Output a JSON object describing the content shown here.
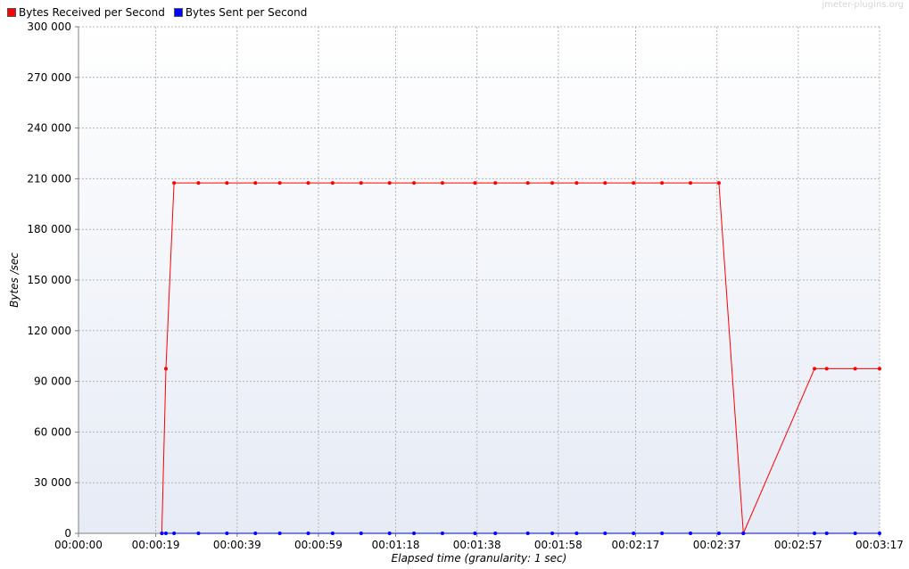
{
  "watermark": "jmeter-plugins.org",
  "chart_data": {
    "type": "line",
    "title": "",
    "xlabel": "Elapsed time (granularity: 1 sec)",
    "ylabel": "Bytes /sec",
    "x_unit": "seconds",
    "xlim": [
      0,
      197
    ],
    "ylim": [
      0,
      300000
    ],
    "x_ticks": [
      0,
      19,
      39,
      59,
      78,
      98,
      118,
      137,
      157,
      177,
      197
    ],
    "x_tick_labels": [
      "00:00:00",
      "00:00:19",
      "00:00:39",
      "00:00:59",
      "00:01:18",
      "00:01:38",
      "00:01:58",
      "00:02:17",
      "00:02:37",
      "00:02:57",
      "00:03:17"
    ],
    "y_ticks": [
      0,
      30000,
      60000,
      90000,
      120000,
      150000,
      180000,
      210000,
      240000,
      270000,
      300000
    ],
    "y_tick_labels": [
      "0",
      "30 000",
      "60 000",
      "90 000",
      "120 000",
      "150 000",
      "180 000",
      "210 000",
      "240 000",
      "270 000",
      "300 000"
    ],
    "grid": true,
    "legend_position": "top-left",
    "series": [
      {
        "name": "Bytes Received per Second",
        "color": "#ff0000",
        "x": [
          20.5,
          21.5,
          23.5,
          29.5,
          36.5,
          43.5,
          49.5,
          56.5,
          62.5,
          69.5,
          76.5,
          82.5,
          89.5,
          97.5,
          102.5,
          110.5,
          116.5,
          122.5,
          129.5,
          136.5,
          143.5,
          150.5,
          157.5,
          163.5,
          181.0,
          184.0,
          191.0,
          197.0
        ],
        "y": [
          0,
          97500,
          207500,
          207500,
          207500,
          207500,
          207500,
          207500,
          207500,
          207500,
          207500,
          207500,
          207500,
          207500,
          207500,
          207500,
          207500,
          207500,
          207500,
          207500,
          207500,
          207500,
          207500,
          0,
          97500,
          97500,
          97500,
          97500
        ]
      },
      {
        "name": "Bytes Sent per Second",
        "color": "#0000ff",
        "x": [
          20.5,
          21.5,
          23.5,
          29.5,
          36.5,
          43.5,
          49.5,
          56.5,
          62.5,
          69.5,
          76.5,
          82.5,
          89.5,
          97.5,
          102.5,
          110.5,
          116.5,
          122.5,
          129.5,
          136.5,
          143.5,
          150.5,
          157.5,
          163.5,
          181.0,
          184.0,
          191.0,
          197.0
        ],
        "y": [
          0,
          0,
          0,
          0,
          0,
          0,
          0,
          0,
          0,
          0,
          0,
          0,
          0,
          0,
          0,
          0,
          0,
          0,
          0,
          0,
          0,
          0,
          0,
          0,
          0,
          0,
          0,
          0
        ]
      }
    ]
  }
}
